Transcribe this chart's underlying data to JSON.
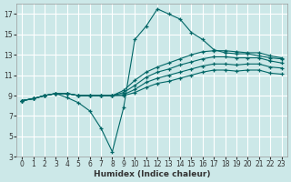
{
  "title": "",
  "xlabel": "Humidex (Indice chaleur)",
  "ylabel": "",
  "background_color": "#cce8e8",
  "grid_color": "#ffffff",
  "line_color": "#006666",
  "xlim": [
    -0.5,
    23.5
  ],
  "ylim": [
    3,
    18
  ],
  "xticks": [
    0,
    1,
    2,
    3,
    4,
    5,
    6,
    7,
    8,
    9,
    10,
    11,
    12,
    13,
    14,
    15,
    16,
    17,
    18,
    19,
    20,
    21,
    22,
    23
  ],
  "yticks": [
    3,
    5,
    7,
    9,
    11,
    13,
    15,
    17
  ],
  "lines": [
    {
      "x": [
        0,
        1,
        2,
        3,
        4,
        5,
        6,
        7,
        8,
        9,
        10,
        11,
        12,
        13,
        14,
        15,
        16,
        17,
        18,
        19,
        20,
        21,
        22,
        23
      ],
      "y": [
        8.5,
        8.7,
        9.0,
        9.2,
        8.8,
        8.3,
        7.5,
        5.8,
        3.5,
        7.8,
        14.5,
        15.8,
        17.5,
        17.0,
        16.5,
        15.2,
        14.5,
        13.5,
        13.2,
        13.1,
        13.1,
        12.9,
        12.7,
        12.6
      ]
    },
    {
      "x": [
        0,
        1,
        2,
        3,
        4,
        5,
        6,
        7,
        8,
        9,
        10,
        11,
        12,
        13,
        14,
        15,
        16,
        17,
        18,
        19,
        20,
        21,
        22,
        23
      ],
      "y": [
        8.5,
        8.7,
        9.0,
        9.2,
        9.2,
        9.0,
        9.0,
        9.0,
        9.0,
        9.5,
        10.5,
        11.3,
        11.8,
        12.2,
        12.6,
        13.0,
        13.3,
        13.4,
        13.4,
        13.3,
        13.2,
        13.2,
        12.9,
        12.7
      ]
    },
    {
      "x": [
        0,
        1,
        2,
        3,
        4,
        5,
        6,
        7,
        8,
        9,
        10,
        11,
        12,
        13,
        14,
        15,
        16,
        17,
        18,
        19,
        20,
        21,
        22,
        23
      ],
      "y": [
        8.5,
        8.7,
        9.0,
        9.2,
        9.2,
        9.0,
        9.0,
        9.0,
        9.0,
        9.3,
        10.0,
        10.8,
        11.3,
        11.6,
        12.0,
        12.3,
        12.6,
        12.8,
        12.8,
        12.7,
        12.7,
        12.7,
        12.4,
        12.2
      ]
    },
    {
      "x": [
        0,
        1,
        2,
        3,
        4,
        5,
        6,
        7,
        8,
        9,
        10,
        11,
        12,
        13,
        14,
        15,
        16,
        17,
        18,
        19,
        20,
        21,
        22,
        23
      ],
      "y": [
        8.5,
        8.7,
        9.0,
        9.2,
        9.2,
        9.0,
        9.0,
        9.0,
        9.0,
        9.1,
        9.6,
        10.3,
        10.7,
        11.0,
        11.3,
        11.6,
        11.9,
        12.1,
        12.1,
        12.0,
        12.1,
        12.1,
        11.8,
        11.7
      ]
    },
    {
      "x": [
        0,
        1,
        2,
        3,
        4,
        5,
        6,
        7,
        8,
        9,
        10,
        11,
        12,
        13,
        14,
        15,
        16,
        17,
        18,
        19,
        20,
        21,
        22,
        23
      ],
      "y": [
        8.5,
        8.7,
        9.0,
        9.2,
        9.2,
        9.0,
        9.0,
        9.0,
        9.0,
        9.0,
        9.3,
        9.8,
        10.2,
        10.4,
        10.7,
        11.0,
        11.3,
        11.5,
        11.5,
        11.4,
        11.5,
        11.5,
        11.2,
        11.1
      ]
    }
  ]
}
